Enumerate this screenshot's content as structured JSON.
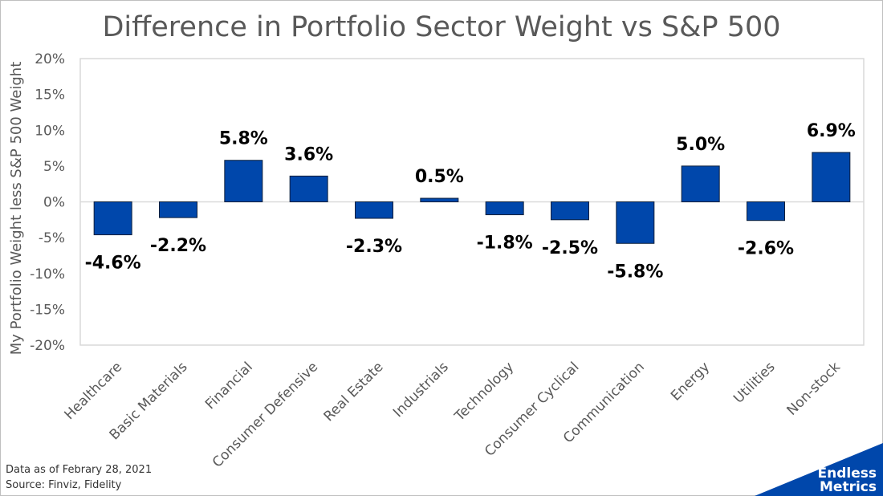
{
  "chart_data": {
    "type": "bar",
    "title": "Difference in Portfolio Sector Weight vs S&P 500",
    "xlabel": "",
    "ylabel": "My Portfolio Weight less S&P 500 Weight",
    "categories": [
      "Healthcare",
      "Basic Materials",
      "Financial",
      "Consumer Defensive",
      "Real Estate",
      "Industrials",
      "Technology",
      "Consumer Cyclical",
      "Communication",
      "Energy",
      "Utilities",
      "Non-stock"
    ],
    "values": [
      -4.6,
      -2.2,
      5.8,
      3.6,
      -2.3,
      0.5,
      -1.8,
      -2.5,
      -5.8,
      5.0,
      -2.6,
      6.9
    ],
    "data_labels": [
      "-4.6%",
      "-2.2%",
      "5.8%",
      "3.6%",
      "-2.3%",
      "0.5%",
      "-1.8%",
      "-2.5%",
      "-5.8%",
      "5.0%",
      "-2.6%",
      "6.9%"
    ],
    "ylim": [
      -20,
      20
    ],
    "yticks": [
      20,
      15,
      10,
      5,
      0,
      -5,
      -10,
      -15,
      -20
    ],
    "ytick_labels": [
      "20%",
      "15%",
      "10%",
      "5%",
      "0%",
      "-5%",
      "-10%",
      "-15%",
      "-20%"
    ],
    "grid": false,
    "bar_color": "#0047ab",
    "legend": "none"
  },
  "footnote": {
    "line1": "Data as of Febrary 28, 2021",
    "line2": "Source: Finviz, Fidelity"
  },
  "brand": {
    "line1": "Endless",
    "line2": "Metrics",
    "color": "#0047ab"
  }
}
